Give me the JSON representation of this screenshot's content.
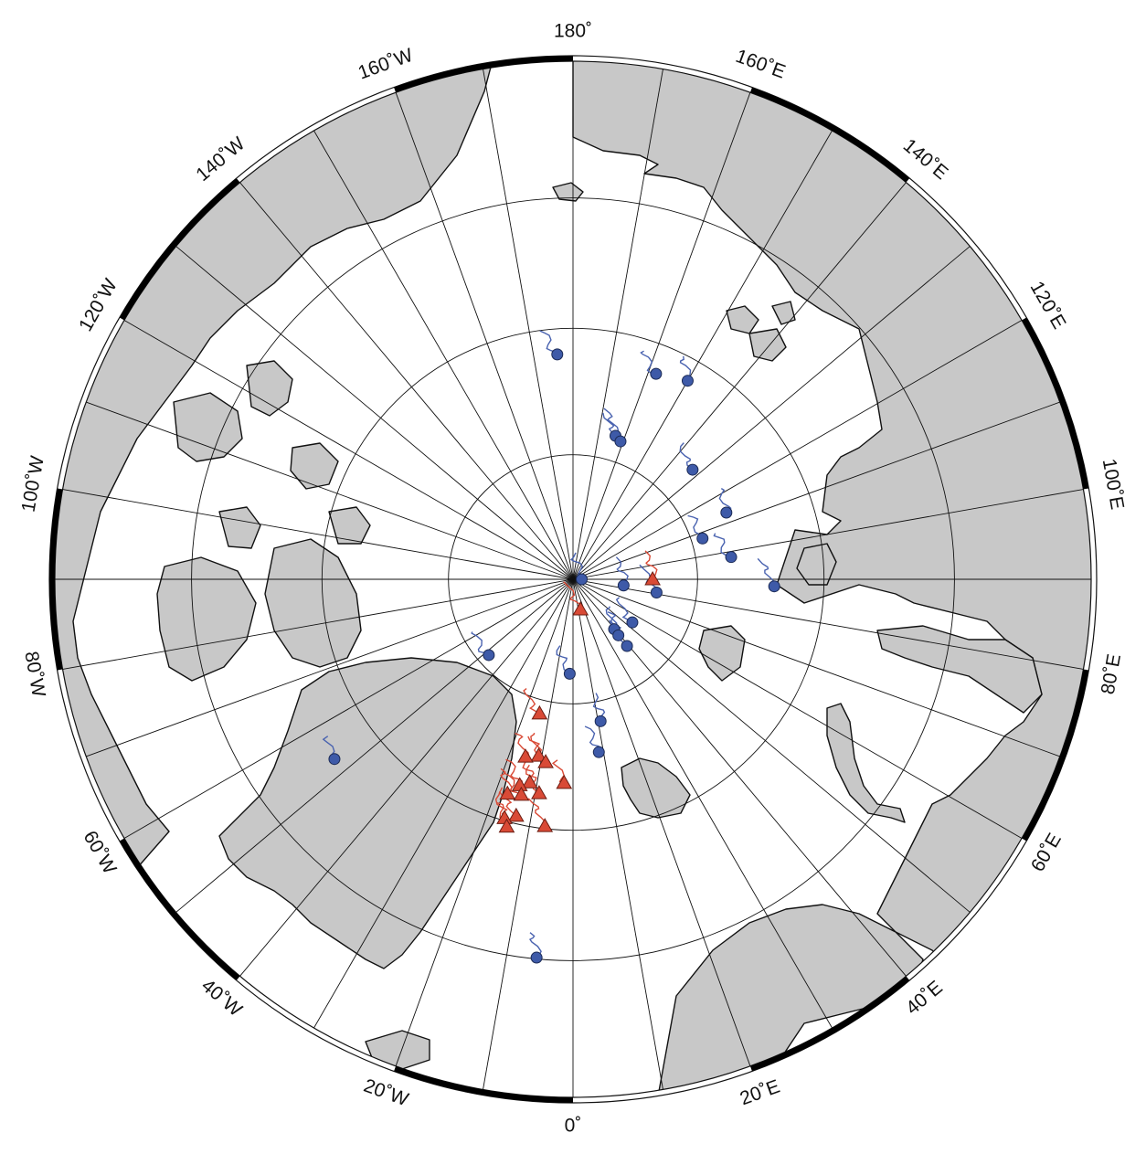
{
  "map": {
    "projection": "north-polar-stereographic",
    "center_latitude": 90,
    "outer_latitude": 50,
    "meridian_spacing_deg": 10,
    "parallels_deg": [
      60,
      70,
      80
    ],
    "frame_ticks_deg": 20,
    "colors": {
      "land": "#c8c8c8",
      "ocean": "#ffffff",
      "coastline": "#111111",
      "red_track": "#d94a36",
      "blue_track": "#4a63b0",
      "red_marker": "#d94a36",
      "blue_marker": "#3e5aa8"
    }
  },
  "longitude_labels": [
    {
      "lon": 180,
      "text": "180˚"
    },
    {
      "lon": 160,
      "text": "160˚E"
    },
    {
      "lon": 140,
      "text": "140˚E"
    },
    {
      "lon": 120,
      "text": "120˚E"
    },
    {
      "lon": 100,
      "text": "100˚E"
    },
    {
      "lon": 80,
      "text": "80˚E"
    },
    {
      "lon": 60,
      "text": "60˚E"
    },
    {
      "lon": 40,
      "text": "40˚E"
    },
    {
      "lon": 20,
      "text": "20˚E"
    },
    {
      "lon": 0,
      "text": "0˚"
    },
    {
      "lon": -20,
      "text": "20˚W"
    },
    {
      "lon": -40,
      "text": "40˚W"
    },
    {
      "lon": -60,
      "text": "60˚W"
    },
    {
      "lon": -80,
      "text": "80˚W"
    },
    {
      "lon": -100,
      "text": "100˚W"
    },
    {
      "lon": -120,
      "text": "120˚W"
    },
    {
      "lon": -140,
      "text": "140˚W"
    },
    {
      "lon": -160,
      "text": "160˚W"
    }
  ],
  "red_triangles": [
    {
      "lat": 83.6,
      "lon": 90.0
    },
    {
      "lat": 87.5,
      "lon": 14.0
    },
    {
      "lat": 78.9,
      "lon": -14.0
    },
    {
      "lat": 75.6,
      "lon": -11.0
    },
    {
      "lat": 75.3,
      "lon": -15.0
    },
    {
      "lat": 75.2,
      "lon": -8.5
    },
    {
      "lat": 72.7,
      "lon": -9.0
    },
    {
      "lat": 73.4,
      "lon": -12.0
    },
    {
      "lat": 73.0,
      "lon": -14.5
    },
    {
      "lat": 72.3,
      "lon": -13.5
    },
    {
      "lat": 73.7,
      "lon": -2.5
    },
    {
      "lat": 72.1,
      "lon": -17.0
    },
    {
      "lat": 70.2,
      "lon": -6.5
    },
    {
      "lat": 70.6,
      "lon": -13.5
    },
    {
      "lat": 70.2,
      "lon": -16.0
    },
    {
      "lat": 69.6,
      "lon": -15.0
    }
  ],
  "blue_circles": [
    {
      "lat": 72.0,
      "lon": -176.0
    },
    {
      "lat": 72.3,
      "lon": 158.0
    },
    {
      "lat": 71.7,
      "lon": 150.0
    },
    {
      "lat": 78.0,
      "lon": 163.5
    },
    {
      "lat": 78.3,
      "lon": 161.0
    },
    {
      "lat": 77.0,
      "lon": 132.5
    },
    {
      "lat": 76.6,
      "lon": 113.5
    },
    {
      "lat": 79.1,
      "lon": 107.5
    },
    {
      "lat": 77.2,
      "lon": 98.0
    },
    {
      "lat": 89.3,
      "lon": 90.0
    },
    {
      "lat": 85.9,
      "lon": 83.0
    },
    {
      "lat": 83.2,
      "lon": 81.0
    },
    {
      "lat": 84.1,
      "lon": 54.0
    },
    {
      "lat": 84.8,
      "lon": 39.5
    },
    {
      "lat": 84.2,
      "lon": 39.0
    },
    {
      "lat": 83.1,
      "lon": 39.0
    },
    {
      "lat": 82.4,
      "lon": -2.0
    },
    {
      "lat": 78.4,
      "lon": 11.0
    },
    {
      "lat": 76.0,
      "lon": 8.5
    },
    {
      "lat": 80.9,
      "lon": -48.0
    },
    {
      "lat": 66.3,
      "lon": -53.0
    },
    {
      "lat": 60.1,
      "lon": -5.5
    },
    {
      "lat": 73.9,
      "lon": 88.0
    }
  ]
}
